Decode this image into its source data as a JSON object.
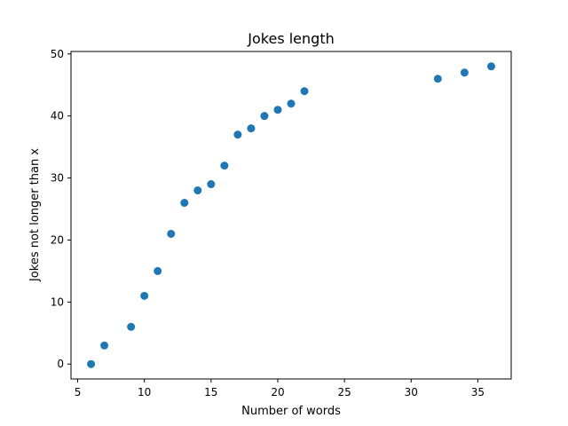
{
  "chart_data": {
    "type": "scatter",
    "title": "Jokes length",
    "xlabel": "Number of words",
    "ylabel": "Jokes not longer than x",
    "xlim": [
      4.5,
      37.5
    ],
    "ylim": [
      -2.4,
      50.4
    ],
    "xticks": [
      5,
      10,
      15,
      20,
      25,
      30,
      35
    ],
    "yticks": [
      0,
      10,
      20,
      30,
      40,
      50
    ],
    "grid": false,
    "color": "#1f77b4",
    "x": [
      6,
      7,
      9,
      10,
      11,
      12,
      13,
      14,
      15,
      16,
      17,
      18,
      19,
      20,
      21,
      22,
      32,
      34,
      36
    ],
    "y": [
      0,
      3,
      6,
      11,
      15,
      21,
      26,
      28,
      29,
      32,
      37,
      38,
      40,
      41,
      42,
      44,
      46,
      47,
      48
    ]
  }
}
